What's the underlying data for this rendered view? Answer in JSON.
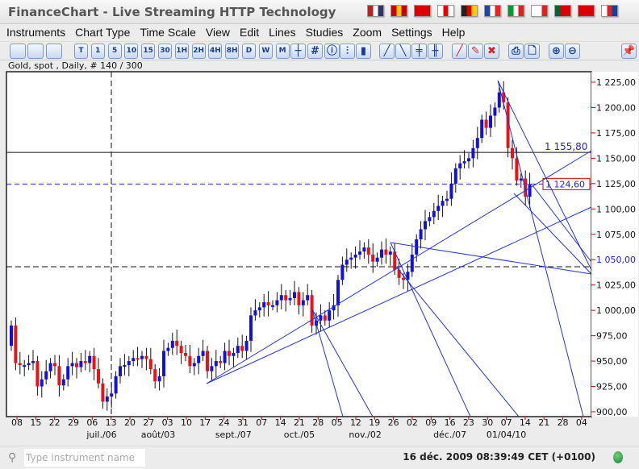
{
  "window": {
    "title": "FinanceChart - Live Streaming HTTP Technology"
  },
  "flags": [
    {
      "name": "flag-us-icon",
      "c": [
        "#b22",
        "#fff",
        "#336"
      ]
    },
    {
      "name": "flag-es-icon",
      "c": [
        "#c00",
        "#fc0",
        "#c00"
      ]
    },
    {
      "name": "flag-cn-icon",
      "c": [
        "#d00",
        "#d00",
        "#d00"
      ]
    },
    {
      "name": "flag-jp-icon",
      "c": [
        "#fff",
        "#e00",
        "#fff"
      ]
    },
    {
      "name": "flag-de-icon",
      "c": [
        "#222",
        "#d00",
        "#fc0"
      ]
    },
    {
      "name": "flag-fr-icon",
      "c": [
        "#24a",
        "#fff",
        "#e22"
      ]
    },
    {
      "name": "flag-it-icon",
      "c": [
        "#093",
        "#fff",
        "#d22"
      ]
    },
    {
      "name": "flag-pl-icon",
      "c": [
        "#fff",
        "#fff",
        "#d22"
      ]
    },
    {
      "name": "flag-pt-icon",
      "c": [
        "#063",
        "#d00",
        "#d00"
      ]
    },
    {
      "name": "flag-tr-icon",
      "c": [
        "#d00",
        "#d00",
        "#d00"
      ]
    },
    {
      "name": "flag-cz-icon",
      "c": [
        "#fff",
        "#d22",
        "#149"
      ]
    }
  ],
  "menu": [
    "Instruments",
    "Chart Type",
    "Time Scale",
    "View",
    "Edit",
    "Lines",
    "Studies",
    "Zoom",
    "Settings",
    "Help"
  ],
  "toolbar": {
    "timeframes": [
      "T",
      "1",
      "5",
      "10",
      "15",
      "30",
      "1H",
      "2H",
      "4H",
      "8H",
      "D",
      "W",
      "M"
    ]
  },
  "info": "Gold, spot , Daily, # 140 / 300",
  "colors": {
    "up": "#1010e0",
    "down": "#ee1111",
    "line": "#2222dd"
  },
  "chart_data": {
    "type": "candlestick",
    "instrument": "Gold, spot",
    "ylim": [
      900,
      1225
    ],
    "yticks": [
      "1 225,00",
      "1 200,00",
      "1 175,00",
      "1 150,00",
      "1 125,00",
      "1 100,00",
      "1 075,00",
      "1 050,00",
      "1 025,00",
      "1 000,00",
      "975,00",
      "950,00",
      "925,00",
      "900,00"
    ],
    "closes": [
      985,
      948,
      946,
      946,
      948,
      950,
      925,
      932,
      940,
      948,
      945,
      926,
      932,
      945,
      948,
      944,
      950,
      948,
      955,
      942,
      928,
      910,
      915,
      918,
      935,
      945,
      946,
      950,
      953,
      952,
      955,
      952,
      942,
      930,
      935,
      960,
      963,
      970,
      965,
      958,
      955,
      945,
      948,
      955,
      960,
      940,
      945,
      950,
      948,
      960,
      955,
      958,
      965,
      960,
      970,
      995,
      1000,
      1003,
      1008,
      1005,
      1005,
      1010,
      1015,
      1010,
      1012,
      1018,
      1005,
      1010,
      1015,
      985,
      990,
      995,
      990,
      1000,
      1005,
      1030,
      1045,
      1050,
      1052,
      1055,
      1058,
      1062,
      1055,
      1048,
      1052,
      1060,
      1055,
      1058,
      1040,
      1032,
      1030,
      1038,
      1055,
      1070,
      1080,
      1088,
      1092,
      1098,
      1103,
      1108,
      1110,
      1125,
      1140,
      1145,
      1147,
      1150,
      1160,
      1170,
      1188,
      1180,
      1192,
      1200,
      1215,
      1205,
      1160,
      1150,
      1128,
      1130,
      1112,
      1124.6
    ],
    "week_labels": [
      "08",
      "15",
      "22",
      "29",
      "06",
      "13",
      "20",
      "27",
      "03",
      "10",
      "17",
      "24",
      "31",
      "07",
      "14",
      "21",
      "28",
      "05",
      "12",
      "19",
      "26",
      "02",
      "09",
      "16",
      "23",
      "30",
      "07",
      "14",
      "21",
      "28",
      "04"
    ],
    "month_labels": [
      {
        "label": "juil./06",
        "week": 4.5
      },
      {
        "label": "août/03",
        "week": 7.5
      },
      {
        "label": "sept./07",
        "week": 11.5
      },
      {
        "label": "oct./05",
        "week": 15
      },
      {
        "label": "nov./02",
        "week": 18.5
      },
      {
        "label": "déc./07",
        "week": 23
      },
      {
        "label": "01/04/10",
        "week": 26
      }
    ],
    "hlines": [
      {
        "value": 1155.8,
        "label": "1 155,80",
        "style": "solid"
      },
      {
        "value": 1124.6,
        "label": "1 124,60",
        "style": "dashed"
      },
      {
        "value": 1043,
        "style": "dashed-black"
      }
    ],
    "axis_marker": "1 050,00"
  },
  "status": {
    "search_placeholder": "Type instrument name",
    "datetime": "16 déc. 2009 08:39:49  CET (+0100)"
  }
}
